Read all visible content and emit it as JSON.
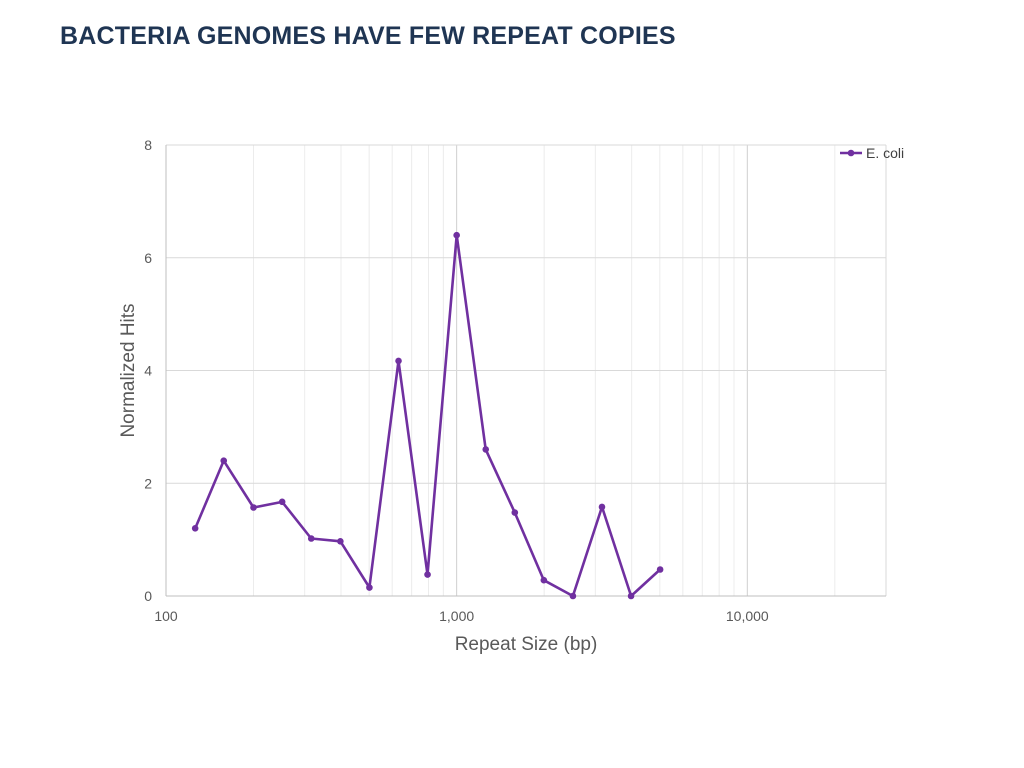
{
  "slide": {
    "title": "BACTERIA GENOMES HAVE FEW REPEAT COPIES"
  },
  "chart_data": {
    "type": "line",
    "title": "",
    "xlabel": "Repeat Size (bp)",
    "ylabel": "Normalized Hits",
    "x_scale": "log",
    "xlim": [
      100,
      30000
    ],
    "ylim": [
      0,
      8
    ],
    "x_ticks": [
      {
        "value": 100,
        "label": "100"
      },
      {
        "value": 1000,
        "label": "1,000"
      },
      {
        "value": 10000,
        "label": "10,000"
      }
    ],
    "y_ticks": [
      {
        "value": 0,
        "label": "0"
      },
      {
        "value": 2,
        "label": "2"
      },
      {
        "value": 4,
        "label": "4"
      },
      {
        "value": 6,
        "label": "6"
      },
      {
        "value": 8,
        "label": "8"
      }
    ],
    "grid": true,
    "legend_position": "top-right",
    "series": [
      {
        "name": "E. coli",
        "color": "#7030a0",
        "x": [
          126,
          158,
          200,
          251,
          316,
          398,
          501,
          631,
          794,
          1000,
          1259,
          1585,
          1995,
          2512,
          3162,
          3981,
          5012
        ],
        "y": [
          1.2,
          2.4,
          1.57,
          1.67,
          1.02,
          0.97,
          0.15,
          4.17,
          0.38,
          6.4,
          2.6,
          1.48,
          0.28,
          0.0,
          1.58,
          0.0,
          0.47
        ]
      }
    ]
  }
}
